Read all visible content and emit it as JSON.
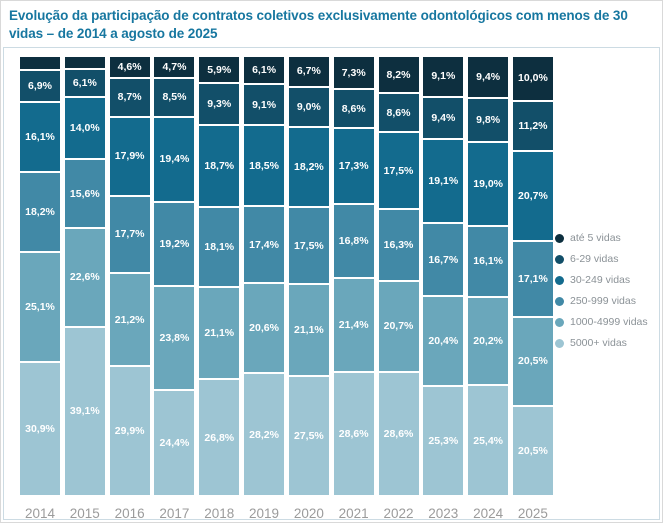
{
  "title": "Evolução da participação de contratos coletivos exclusivamente odontológicos com menos de 30 vidas – de 2014 a agosto de 2025",
  "title_color": "#1777a0",
  "chart_data": {
    "type": "bar",
    "stacked": true,
    "percent_scale": true,
    "grid": false,
    "legend_position": "right",
    "xlabel": "",
    "ylabel": "",
    "ylim": [
      0,
      100
    ],
    "categories": [
      "2014",
      "2015",
      "2016",
      "2017",
      "2018",
      "2019",
      "2020",
      "2021",
      "2022",
      "2023",
      "2024",
      "2025"
    ],
    "series": [
      {
        "name": "até 5 vidas",
        "color": "#0d2f3f",
        "values": [
          2.8,
          2.6,
          4.6,
          4.7,
          5.9,
          6.1,
          6.7,
          7.3,
          8.2,
          9.1,
          9.4,
          10.0
        ],
        "labels": [
          "",
          "",
          "4,6%",
          "4,7%",
          "5,9%",
          "6,1%",
          "6,7%",
          "7,3%",
          "8,2%",
          "9,1%",
          "9,4%",
          "10,0%"
        ]
      },
      {
        "name": "6-29 vidas",
        "color": "#124f69",
        "values": [
          6.9,
          6.1,
          8.7,
          8.5,
          9.3,
          9.1,
          9.0,
          8.6,
          8.6,
          9.4,
          9.8,
          11.2
        ],
        "labels": [
          "6,9%",
          "6,1%",
          "8,7%",
          "8,5%",
          "9,3%",
          "9,1%",
          "9,0%",
          "8,6%",
          "8,6%",
          "9,4%",
          "9,8%",
          "11,2%"
        ]
      },
      {
        "name": "30-249 vidas",
        "color": "#136b8e",
        "values": [
          16.1,
          14.0,
          17.9,
          19.4,
          18.7,
          18.5,
          18.2,
          17.3,
          17.5,
          19.1,
          19.0,
          20.7
        ],
        "labels": [
          "16,1%",
          "14,0%",
          "17,9%",
          "19,4%",
          "18,7%",
          "18,5%",
          "18,2%",
          "17,3%",
          "17,5%",
          "19,1%",
          "19,0%",
          "20,7%"
        ]
      },
      {
        "name": "250-999 vidas",
        "color": "#4189a6",
        "values": [
          18.2,
          15.6,
          17.7,
          19.2,
          18.1,
          17.4,
          17.5,
          16.8,
          16.3,
          16.7,
          16.1,
          17.1
        ],
        "labels": [
          "18,2%",
          "15,6%",
          "17,7%",
          "19,2%",
          "18,1%",
          "17,4%",
          "17,5%",
          "16,8%",
          "16,3%",
          "16,7%",
          "16,1%",
          "17,1%"
        ]
      },
      {
        "name": "1000-4999 vidas",
        "color": "#6aa7bb",
        "values": [
          25.1,
          22.6,
          21.2,
          23.8,
          21.1,
          20.6,
          21.1,
          21.4,
          20.7,
          20.4,
          20.2,
          20.5
        ],
        "labels": [
          "25,1%",
          "22,6%",
          "21,2%",
          "23,8%",
          "21,1%",
          "20,6%",
          "21,1%",
          "21,4%",
          "20,7%",
          "20,4%",
          "20,2%",
          "20,5%"
        ]
      },
      {
        "name": "5000+ vidas",
        "color": "#9dc5d3",
        "values": [
          30.9,
          39.1,
          29.9,
          24.4,
          26.8,
          28.2,
          27.5,
          28.6,
          28.6,
          25.3,
          25.4,
          20.5
        ],
        "labels": [
          "30,9%",
          "39,1%",
          "29,9%",
          "24,4%",
          "26,8%",
          "28,2%",
          "27,5%",
          "28,6%",
          "28,6%",
          "25,3%",
          "25,4%",
          "20,5%"
        ]
      }
    ]
  }
}
